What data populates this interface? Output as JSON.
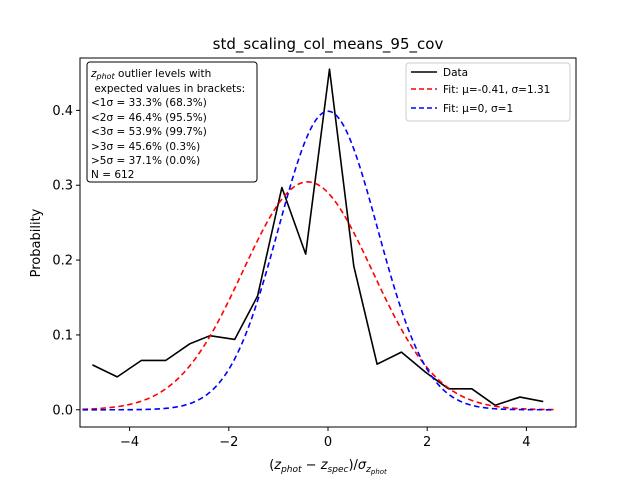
{
  "chart_data": {
    "type": "line",
    "title": "std_scaling_col_means_95_cov",
    "xlabel": "(z_phot − z_spec)/σ_z_phot",
    "ylabel": "Probability",
    "xlim": [
      -5.0,
      5.0
    ],
    "ylim": [
      -0.023,
      0.47
    ],
    "xticks": [
      -4,
      -2,
      0,
      2,
      4
    ],
    "xtick_labels": [
      "−4",
      "−2",
      "0",
      "2",
      "4"
    ],
    "yticks": [
      0.0,
      0.1,
      0.2,
      0.3,
      0.4
    ],
    "ytick_labels": [
      "0.0",
      "0.1",
      "0.2",
      "0.3",
      "0.4"
    ],
    "grid": false,
    "legend_position": "top-right",
    "series": [
      {
        "name": "Data",
        "color": "#000000",
        "dash": "solid",
        "x": [
          -4.75,
          -4.25,
          -3.76,
          -3.27,
          -2.79,
          -2.38,
          -1.88,
          -1.42,
          -0.93,
          -0.45,
          0.03,
          0.52,
          0.99,
          1.48,
          1.97,
          2.43,
          2.9,
          3.37,
          3.87,
          4.34
        ],
        "y": [
          0.06,
          0.044,
          0.066,
          0.066,
          0.088,
          0.099,
          0.094,
          0.152,
          0.297,
          0.208,
          0.455,
          0.192,
          0.061,
          0.077,
          0.05,
          0.028,
          0.028,
          0.006,
          0.017,
          0.011
        ]
      },
      {
        "name": "Fit: μ=-0.41, σ=1.31",
        "color": "#ff0000",
        "dash": "dashed",
        "fit": {
          "mu": -0.41,
          "sigma": 1.31
        },
        "x_range": [
          -4.95,
          4.55
        ]
      },
      {
        "name": "Fit: μ=0, σ=1",
        "color": "#0000ff",
        "dash": "dashed",
        "fit": {
          "mu": 0,
          "sigma": 1
        },
        "x_range": [
          -4.95,
          4.55
        ]
      }
    ],
    "annotation_box": {
      "lines": [
        "z_phot outlier levels with",
        " expected values in brackets:",
        "<1σ = 33.3% (68.3%)",
        "<2σ = 46.4% (95.5%)",
        "<3σ = 53.9% (99.7%)",
        ">3σ = 45.6% (0.3%)",
        ">5σ = 37.1% (0.0%)",
        "N = 612"
      ]
    }
  }
}
